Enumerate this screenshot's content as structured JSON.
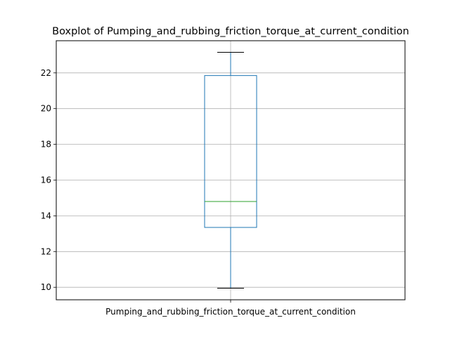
{
  "chart_data": {
    "type": "boxplot",
    "title": "Boxplot of Pumping_and_rubbing_friction_torque_at_current_condition",
    "categories": [
      "Pumping_and_rubbing_friction_torque_at_current_condition"
    ],
    "series": [
      {
        "whisker_low": 9.95,
        "q1": 13.35,
        "median": 14.8,
        "q3": 21.85,
        "whisker_high": 23.15
      }
    ],
    "ylim": [
      9.3,
      23.8
    ],
    "yticks": [
      10,
      12,
      14,
      16,
      18,
      20,
      22
    ],
    "grid": true,
    "colors": {
      "box": "#1f77b4",
      "whisker": "#1f77b4",
      "median": "#2ca02c",
      "cap": "#000000",
      "grid": "#b0b0b0"
    }
  }
}
